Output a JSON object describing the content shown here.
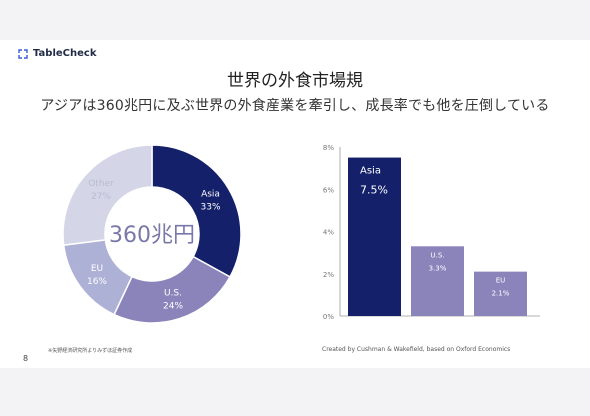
{
  "logo": {
    "text": "TableCheck"
  },
  "title": "世界の外食市場規",
  "subtitle": "アジアは360兆円に及ぶ世界の外食産業を牽引し、成長率でも他を圧倒している",
  "footnote": "※矢野経済研究所よりみずほ証券作成",
  "credit": "Created by Cushman & Wakefield, based on Oxford Economics",
  "page_number": "8",
  "colors": {
    "asia": "#14206a",
    "us": "#8a84bb",
    "eu": "#aeb1d6",
    "other": "#d4d6e8"
  },
  "chart_data": [
    {
      "type": "pie",
      "style": "donut",
      "center_label": "360兆円",
      "slices": [
        {
          "label": "Asia",
          "value": 33,
          "value_label": "33%",
          "color": "#14206a"
        },
        {
          "label": "U.S.",
          "value": 24,
          "value_label": "24%",
          "color": "#8a84bb"
        },
        {
          "label": "EU",
          "value": 16,
          "value_label": "16%",
          "color": "#aeb1d6"
        },
        {
          "label": "Other",
          "value": 27,
          "value_label": "27%",
          "color": "#d4d6e8"
        }
      ]
    },
    {
      "type": "bar",
      "categories": [
        "Asia",
        "U.S.",
        "EU"
      ],
      "values": [
        7.5,
        3.3,
        2.1
      ],
      "value_labels": [
        "7.5%",
        "3.3%",
        "2.1%"
      ],
      "colors": [
        "#14206a",
        "#8a84bb",
        "#8a84bb"
      ],
      "ylim": [
        0,
        8
      ],
      "yticks": [
        "0%",
        "2%",
        "4%",
        "6%",
        "8%"
      ],
      "grid": false
    }
  ]
}
